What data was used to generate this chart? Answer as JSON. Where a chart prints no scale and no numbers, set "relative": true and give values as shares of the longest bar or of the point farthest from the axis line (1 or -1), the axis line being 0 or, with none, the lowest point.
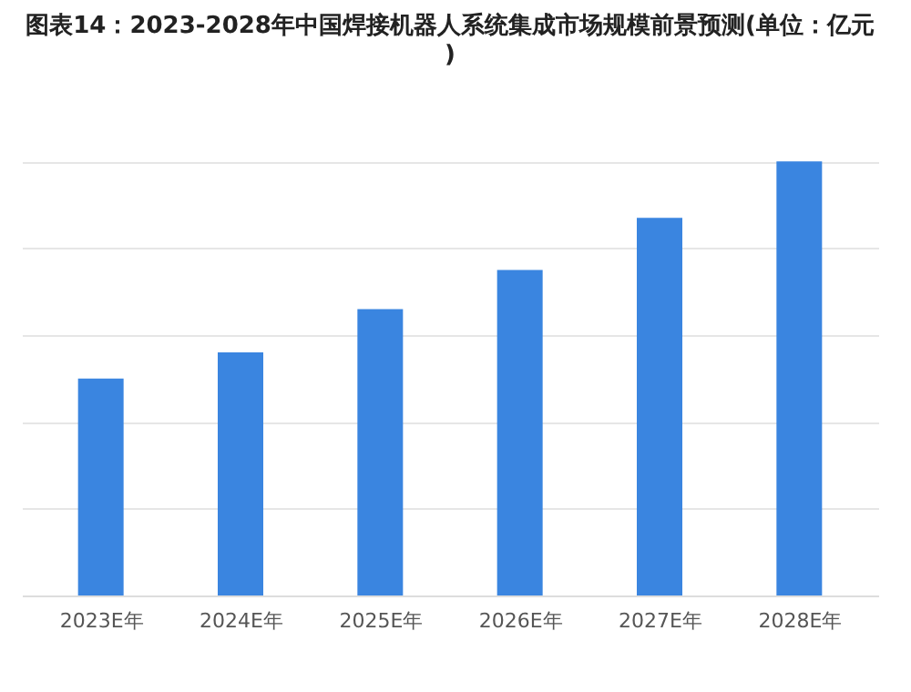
{
  "chart_data": {
    "type": "bar",
    "title": "图表14：2023-2028年中国焊接机器人系统集成市场规模前景预测(单位：亿元)",
    "categories": [
      "2023E年",
      "2024E年",
      "2025E年",
      "2026E年",
      "2027E年",
      "2028E年"
    ],
    "values": [
      0.5,
      0.56,
      0.66,
      0.75,
      0.87,
      1
    ],
    "color": "#3a85e0",
    "relative": true,
    "grid": "y"
  }
}
